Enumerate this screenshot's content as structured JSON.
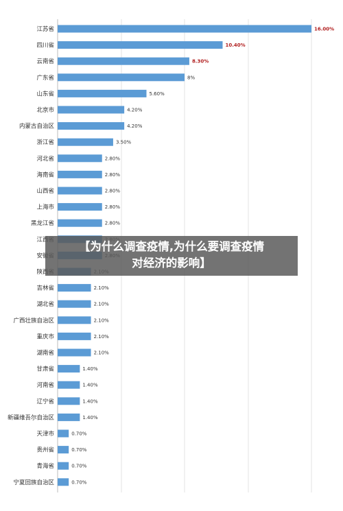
{
  "overlay": {
    "line1": "【为什么调查疫情,为什么要调查疫情",
    "line2": "对经济的影响】"
  },
  "chart_data": {
    "type": "bar",
    "orientation": "horizontal",
    "title": "",
    "xlabel": "",
    "ylabel": "",
    "xlim": [
      0,
      16
    ],
    "grid": true,
    "bar_color": "#5b9bd5",
    "highlight_label_color": "#b22222",
    "categories": [
      "江苏省",
      "四川省",
      "云南省",
      "广东省",
      "山东省",
      "北京市",
      "内蒙古自治区",
      "浙江省",
      "河北省",
      "海南省",
      "山西省",
      "上海市",
      "黑龙江省",
      "江西省",
      "安徽省",
      "陕西省",
      "吉林省",
      "湖北省",
      "广西壮族自治区",
      "重庆市",
      "湖南省",
      "甘肃省",
      "河南省",
      "辽宁省",
      "新疆维吾尔自治区",
      "天津市",
      "贵州省",
      "青海省",
      "宁夏回族自治区"
    ],
    "values": [
      16.0,
      10.4,
      8.3,
      8.0,
      5.6,
      4.2,
      4.2,
      3.5,
      2.8,
      2.8,
      2.8,
      2.8,
      2.8,
      2.8,
      2.8,
      2.1,
      2.1,
      2.1,
      2.1,
      2.1,
      2.1,
      1.4,
      1.4,
      1.4,
      1.4,
      0.7,
      0.7,
      0.7,
      0.7
    ],
    "labels": [
      "16.00%",
      "10.40%",
      "8.30%",
      "8%",
      "5.60%",
      "4.20%",
      "4.20%",
      "3.50%",
      "2.80%",
      "2.80%",
      "2.80%",
      "2.80%",
      "2.80%",
      "2.80%",
      "2.80%",
      "2.10%",
      "2.10%",
      "2.10%",
      "2.10%",
      "2.10%",
      "2.10%",
      "1.40%",
      "1.40%",
      "1.40%",
      "1.40%",
      "0.70%",
      "0.70%",
      "0.70%",
      "0.70%"
    ],
    "highlighted": [
      0,
      1,
      2
    ]
  }
}
